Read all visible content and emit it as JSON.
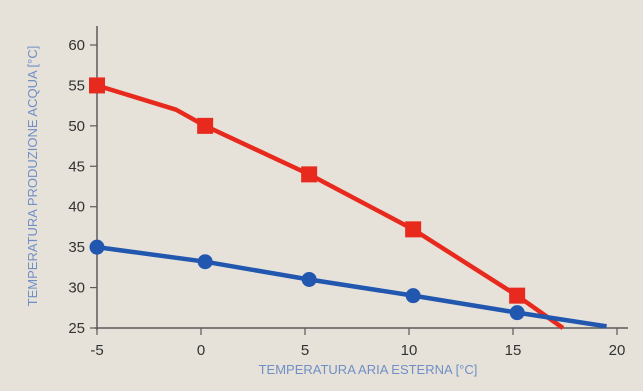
{
  "chart_data": {
    "type": "line",
    "xlabel": "TEMPERATURA ARIA ESTERNA [°C]",
    "ylabel": "TEMPERATURA PRODUZIONE ACQUA [°C]",
    "xlim": [
      -5,
      20
    ],
    "ylim": [
      25,
      60
    ],
    "x_ticks": [
      -5,
      0,
      5,
      10,
      15,
      20
    ],
    "y_ticks": [
      25,
      30,
      35,
      40,
      45,
      50,
      55,
      60
    ],
    "x_tick_labels": [
      "-5",
      "0",
      "5",
      "10",
      "15",
      "20"
    ],
    "y_tick_labels": [
      "25",
      "30",
      "35",
      "40",
      "45",
      "50",
      "55",
      "60"
    ],
    "grid": false,
    "series": [
      {
        "color": "#e8291d",
        "marker": "square",
        "points": [
          {
            "x": -5,
            "y": 55,
            "marker": true
          },
          {
            "x": -1.2,
            "y": 52,
            "marker": false
          },
          {
            "x": 0.2,
            "y": 50,
            "marker": true
          },
          {
            "x": 5.2,
            "y": 44,
            "marker": true
          },
          {
            "x": 10.2,
            "y": 37.2,
            "marker": true
          },
          {
            "x": 15.2,
            "y": 29,
            "marker": true
          },
          {
            "x": 17.4,
            "y": 25,
            "marker": false
          }
        ]
      },
      {
        "color": "#2257b0",
        "marker": "circle",
        "points": [
          {
            "x": -5,
            "y": 35,
            "marker": true
          },
          {
            "x": 0.2,
            "y": 33.2,
            "marker": true
          },
          {
            "x": 5.2,
            "y": 31,
            "marker": true
          },
          {
            "x": 10.2,
            "y": 29,
            "marker": true
          },
          {
            "x": 15.2,
            "y": 26.9,
            "marker": true
          },
          {
            "x": 19.5,
            "y": 25.2,
            "marker": false
          }
        ]
      }
    ],
    "colors": {
      "background": "#e6e2d9",
      "axis": "#5a5a5a",
      "tick_text": "#333333",
      "label_text": "#6f8fc6"
    }
  }
}
